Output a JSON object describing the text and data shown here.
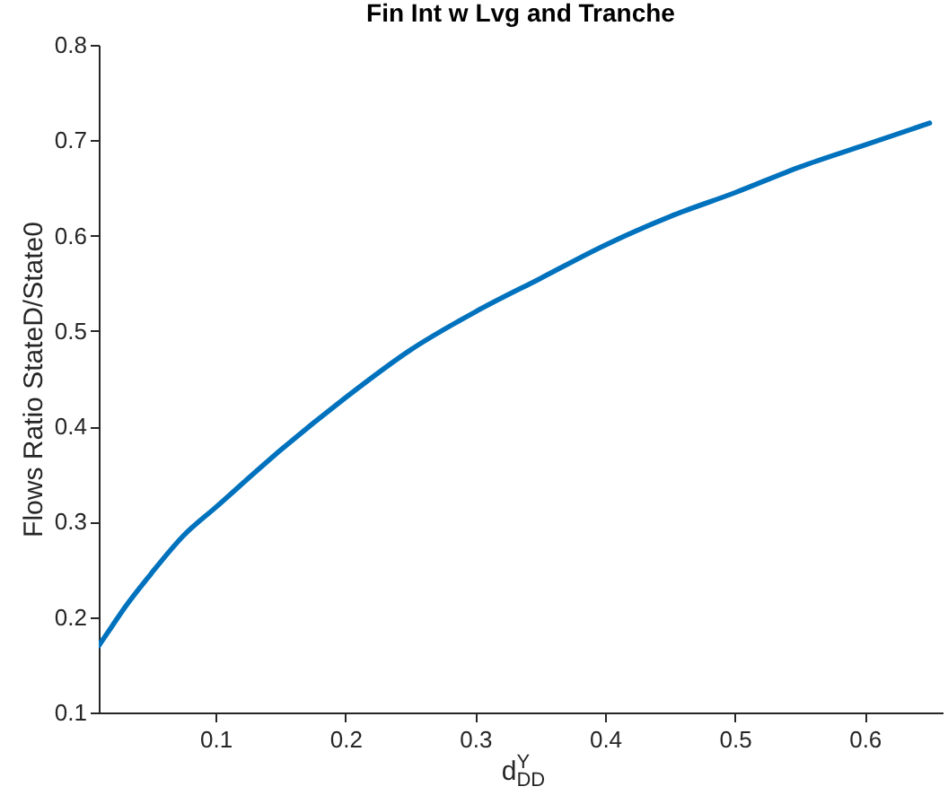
{
  "chart_data": {
    "type": "line",
    "title": "Fin Int w Lvg and Tranche",
    "xlabel": "d$^{Y}$$_{DD}$",
    "ylabel": "Flows Ratio StateD/State0",
    "x": [
      0.01,
      0.02,
      0.03,
      0.05,
      0.075,
      0.1,
      0.15,
      0.2,
      0.25,
      0.3,
      0.35,
      0.4,
      0.45,
      0.5,
      0.55,
      0.6,
      0.65
    ],
    "series": [
      {
        "color": "#0072bd",
        "values": [
          0.17,
          0.19,
          0.21,
          0.245,
          0.285,
          0.315,
          0.375,
          0.43,
          0.48,
          0.52,
          0.555,
          0.59,
          0.62,
          0.645,
          0.672,
          0.695,
          0.718
        ]
      }
    ],
    "xlim": [
      0.01,
      0.66
    ],
    "xticks": [
      0.1,
      0.2,
      0.3,
      0.4,
      0.5,
      0.6
    ],
    "ylim": [
      0.1,
      0.8
    ],
    "yticks": [
      0.1,
      0.2,
      0.3,
      0.4,
      0.5,
      0.6,
      0.7,
      0.8
    ],
    "grid": false,
    "legend": false,
    "line_style": "solid",
    "marker": "none"
  }
}
